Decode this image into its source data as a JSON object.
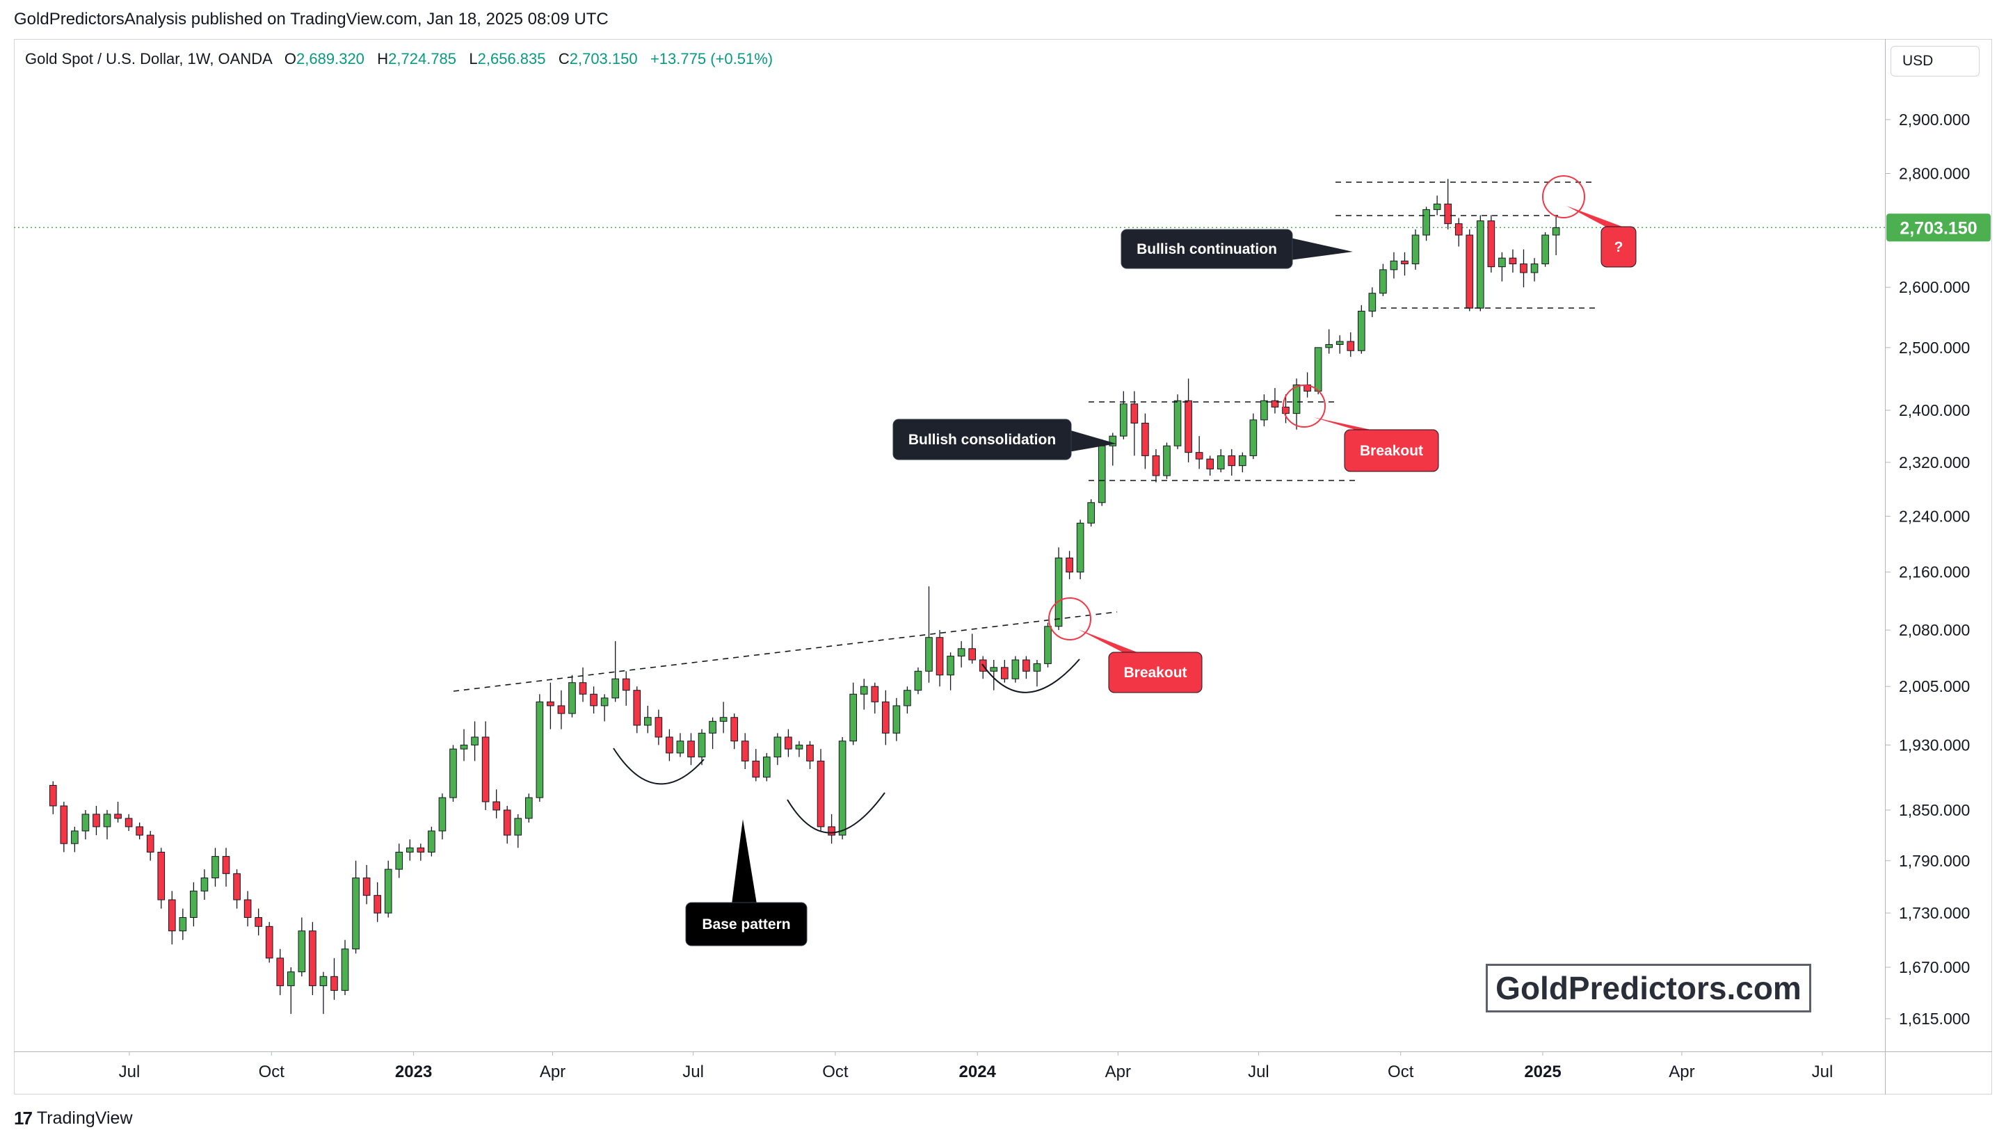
{
  "header": {
    "publish_line": "GoldPredictorsAnalysis published on TradingView.com, Jan 18, 2025 08:09 UTC"
  },
  "legend": {
    "symbol": "Gold Spot / U.S. Dollar, 1W, OANDA",
    "o_label": "O",
    "o_value": "2,689.320",
    "h_label": "H",
    "h_value": "2,724.785",
    "l_label": "L",
    "l_value": "2,656.835",
    "c_label": "C",
    "c_value": "2,703.150",
    "change": "+13.775 (+0.51%)"
  },
  "currency_button": "USD",
  "footer": {
    "brand": "TradingView",
    "icon": "tradingview-logo-icon"
  },
  "watermark": "GoldPredictors.com",
  "colors": {
    "bull": "#089981",
    "bull_fill": "#4caf50",
    "bear": "#f23645",
    "annotation_dark": "#1e222d",
    "annotation_red": "#f23645",
    "current_price": "#4caf50"
  },
  "chart_data": {
    "type": "candlestick",
    "title": "Gold Spot / U.S. Dollar, 1W, OANDA",
    "currency": "USD",
    "current_price": "2,703.150",
    "price_scale_log": true,
    "ylim": [
      1590,
      3000
    ],
    "xlim": [
      "2022-05-09",
      "2025-08-18"
    ],
    "price_ticks": [
      "2,900.000",
      "2,800.000",
      "2,600.000",
      "2,500.000",
      "2,400.000",
      "2,320.000",
      "2,240.000",
      "2,160.000",
      "2,080.000",
      "2,005.000",
      "1,930.000",
      "1,850.000",
      "1,790.000",
      "1,730.000",
      "1,670.000",
      "1,615.000"
    ],
    "time_ticks": [
      {
        "label": "Jul",
        "date": "2022-07-01",
        "bold": false
      },
      {
        "label": "Oct",
        "date": "2022-10-01",
        "bold": false
      },
      {
        "label": "2023",
        "date": "2023-01-01",
        "bold": true
      },
      {
        "label": "Apr",
        "date": "2023-04-01",
        "bold": false
      },
      {
        "label": "Jul",
        "date": "2023-07-01",
        "bold": false
      },
      {
        "label": "Oct",
        "date": "2023-10-01",
        "bold": false
      },
      {
        "label": "2024",
        "date": "2024-01-01",
        "bold": true
      },
      {
        "label": "Apr",
        "date": "2024-04-01",
        "bold": false
      },
      {
        "label": "Jul",
        "date": "2024-07-01",
        "bold": false
      },
      {
        "label": "Oct",
        "date": "2024-10-01",
        "bold": false
      },
      {
        "label": "2025",
        "date": "2025-01-01",
        "bold": true
      },
      {
        "label": "Apr",
        "date": "2025-04-01",
        "bold": false
      },
      {
        "label": "Jul",
        "date": "2025-07-01",
        "bold": false
      }
    ],
    "ohlc_weekly": [
      [
        1880,
        1885,
        1845,
        1855
      ],
      [
        1855,
        1860,
        1800,
        1810
      ],
      [
        1810,
        1830,
        1800,
        1825
      ],
      [
        1825,
        1850,
        1815,
        1845
      ],
      [
        1845,
        1855,
        1820,
        1830
      ],
      [
        1830,
        1850,
        1815,
        1845
      ],
      [
        1845,
        1860,
        1835,
        1840
      ],
      [
        1840,
        1845,
        1825,
        1830
      ],
      [
        1830,
        1835,
        1815,
        1820
      ],
      [
        1820,
        1825,
        1790,
        1800
      ],
      [
        1800,
        1805,
        1735,
        1745
      ],
      [
        1745,
        1755,
        1695,
        1710
      ],
      [
        1710,
        1735,
        1700,
        1725
      ],
      [
        1725,
        1765,
        1715,
        1755
      ],
      [
        1755,
        1780,
        1745,
        1770
      ],
      [
        1770,
        1805,
        1760,
        1795
      ],
      [
        1795,
        1805,
        1760,
        1775
      ],
      [
        1775,
        1780,
        1735,
        1745
      ],
      [
        1745,
        1755,
        1715,
        1725
      ],
      [
        1725,
        1735,
        1705,
        1715
      ],
      [
        1715,
        1720,
        1675,
        1680
      ],
      [
        1680,
        1690,
        1640,
        1650
      ],
      [
        1650,
        1670,
        1620,
        1665
      ],
      [
        1665,
        1725,
        1660,
        1710
      ],
      [
        1710,
        1720,
        1640,
        1650
      ],
      [
        1650,
        1665,
        1620,
        1660
      ],
      [
        1660,
        1680,
        1635,
        1645
      ],
      [
        1645,
        1700,
        1640,
        1690
      ],
      [
        1690,
        1790,
        1685,
        1770
      ],
      [
        1770,
        1785,
        1740,
        1750
      ],
      [
        1750,
        1765,
        1720,
        1730
      ],
      [
        1730,
        1790,
        1725,
        1780
      ],
      [
        1780,
        1810,
        1770,
        1800
      ],
      [
        1800,
        1815,
        1790,
        1805
      ],
      [
        1805,
        1810,
        1790,
        1800
      ],
      [
        1800,
        1830,
        1795,
        1825
      ],
      [
        1825,
        1870,
        1815,
        1865
      ],
      [
        1865,
        1930,
        1860,
        1925
      ],
      [
        1925,
        1950,
        1910,
        1930
      ],
      [
        1930,
        1960,
        1910,
        1940
      ],
      [
        1940,
        1960,
        1850,
        1860
      ],
      [
        1860,
        1875,
        1840,
        1850
      ],
      [
        1850,
        1855,
        1810,
        1820
      ],
      [
        1820,
        1845,
        1805,
        1840
      ],
      [
        1840,
        1870,
        1835,
        1865
      ],
      [
        1865,
        1995,
        1860,
        1985
      ],
      [
        1985,
        2010,
        1950,
        1980
      ],
      [
        1980,
        2000,
        1950,
        1970
      ],
      [
        1970,
        2020,
        1965,
        2010
      ],
      [
        2010,
        2030,
        1985,
        1995
      ],
      [
        1995,
        2005,
        1970,
        1980
      ],
      [
        1980,
        1995,
        1960,
        1990
      ],
      [
        1990,
        2065,
        1985,
        2015
      ],
      [
        2015,
        2025,
        1980,
        2000
      ],
      [
        2000,
        2005,
        1945,
        1955
      ],
      [
        1955,
        1980,
        1945,
        1965
      ],
      [
        1965,
        1975,
        1930,
        1940
      ],
      [
        1940,
        1950,
        1910,
        1920
      ],
      [
        1920,
        1945,
        1915,
        1935
      ],
      [
        1935,
        1945,
        1905,
        1915
      ],
      [
        1915,
        1950,
        1905,
        1945
      ],
      [
        1945,
        1965,
        1925,
        1960
      ],
      [
        1960,
        1985,
        1945,
        1965
      ],
      [
        1965,
        1970,
        1925,
        1935
      ],
      [
        1935,
        1945,
        1900,
        1910
      ],
      [
        1910,
        1925,
        1885,
        1890
      ],
      [
        1890,
        1920,
        1885,
        1915
      ],
      [
        1915,
        1945,
        1905,
        1940
      ],
      [
        1940,
        1950,
        1915,
        1925
      ],
      [
        1925,
        1935,
        1915,
        1930
      ],
      [
        1930,
        1935,
        1900,
        1910
      ],
      [
        1910,
        1925,
        1825,
        1830
      ],
      [
        1830,
        1845,
        1810,
        1820
      ],
      [
        1820,
        1940,
        1815,
        1935
      ],
      [
        1935,
        2010,
        1930,
        1995
      ],
      [
        1995,
        2015,
        1975,
        2005
      ],
      [
        2005,
        2010,
        1970,
        1985
      ],
      [
        1985,
        2000,
        1930,
        1945
      ],
      [
        1945,
        1990,
        1935,
        1980
      ],
      [
        1980,
        2005,
        1970,
        2000
      ],
      [
        2000,
        2030,
        1995,
        2025
      ],
      [
        2025,
        2140,
        2010,
        2070
      ],
      [
        2070,
        2080,
        2005,
        2020
      ],
      [
        2020,
        2050,
        2000,
        2045
      ],
      [
        2045,
        2065,
        2030,
        2055
      ],
      [
        2055,
        2075,
        2035,
        2040
      ],
      [
        2040,
        2045,
        2015,
        2025
      ],
      [
        2025,
        2040,
        2000,
        2030
      ],
      [
        2030,
        2040,
        2010,
        2015
      ],
      [
        2015,
        2045,
        2010,
        2040
      ],
      [
        2040,
        2045,
        2015,
        2025
      ],
      [
        2025,
        2040,
        2005,
        2035
      ],
      [
        2035,
        2090,
        2030,
        2085
      ],
      [
        2085,
        2195,
        2080,
        2180
      ],
      [
        2180,
        2190,
        2150,
        2160
      ],
      [
        2160,
        2235,
        2150,
        2230
      ],
      [
        2230,
        2265,
        2225,
        2260
      ],
      [
        2260,
        2355,
        2255,
        2345
      ],
      [
        2345,
        2365,
        2315,
        2360
      ],
      [
        2360,
        2430,
        2355,
        2410
      ],
      [
        2410,
        2430,
        2330,
        2380
      ],
      [
        2380,
        2395,
        2310,
        2330
      ],
      [
        2330,
        2340,
        2290,
        2300
      ],
      [
        2300,
        2350,
        2295,
        2345
      ],
      [
        2345,
        2425,
        2340,
        2415
      ],
      [
        2415,
        2450,
        2320,
        2335
      ],
      [
        2335,
        2360,
        2310,
        2325
      ],
      [
        2325,
        2330,
        2300,
        2310
      ],
      [
        2310,
        2340,
        2305,
        2330
      ],
      [
        2330,
        2340,
        2300,
        2315
      ],
      [
        2315,
        2335,
        2305,
        2330
      ],
      [
        2330,
        2395,
        2325,
        2385
      ],
      [
        2385,
        2425,
        2375,
        2415
      ],
      [
        2415,
        2435,
        2395,
        2405
      ],
      [
        2405,
        2425,
        2380,
        2395
      ],
      [
        2395,
        2450,
        2370,
        2440
      ],
      [
        2440,
        2460,
        2420,
        2430
      ],
      [
        2430,
        2475,
        2425,
        2500
      ],
      [
        2500,
        2530,
        2490,
        2505
      ],
      [
        2505,
        2520,
        2490,
        2510
      ],
      [
        2510,
        2525,
        2485,
        2495
      ],
      [
        2495,
        2570,
        2490,
        2560
      ],
      [
        2560,
        2600,
        2550,
        2590
      ],
      [
        2590,
        2640,
        2585,
        2630
      ],
      [
        2630,
        2660,
        2615,
        2645
      ],
      [
        2645,
        2660,
        2620,
        2640
      ],
      [
        2640,
        2700,
        2630,
        2690
      ],
      [
        2690,
        2740,
        2680,
        2735
      ],
      [
        2735,
        2760,
        2725,
        2745
      ],
      [
        2745,
        2790,
        2700,
        2710
      ],
      [
        2710,
        2720,
        2670,
        2690
      ],
      [
        2690,
        2700,
        2560,
        2565
      ],
      [
        2565,
        2725,
        2560,
        2715
      ],
      [
        2715,
        2725,
        2625,
        2635
      ],
      [
        2635,
        2660,
        2610,
        2650
      ],
      [
        2650,
        2665,
        2625,
        2640
      ],
      [
        2640,
        2665,
        2600,
        2625
      ],
      [
        2625,
        2650,
        2610,
        2640
      ],
      [
        2640,
        2695,
        2635,
        2690
      ],
      [
        2690,
        2725,
        2655,
        2703
      ]
    ],
    "annotations": [
      {
        "label": "Bullish continuation",
        "style": "dark"
      },
      {
        "label": "Bullish consolidation",
        "style": "dark"
      },
      {
        "label": "Base pattern",
        "style": "black"
      },
      {
        "label": "Breakout",
        "style": "red"
      },
      {
        "label": "Breakout",
        "style": "red"
      },
      {
        "label": "?",
        "style": "red"
      }
    ]
  }
}
